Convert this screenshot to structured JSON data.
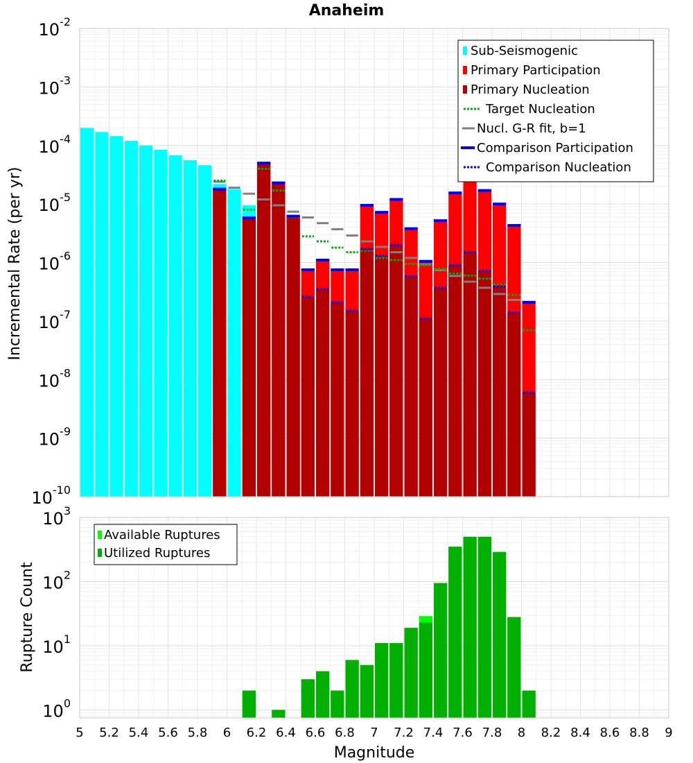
{
  "colors": {
    "sub_seismogenic": "#00ffff",
    "primary_participation": "#ff0000",
    "primary_nucleation": "#b20000",
    "target_nucleation": "#00b000",
    "gr_fit": "#808080",
    "comparison": "#0000ff",
    "available": "#00ff00",
    "utilized": "#00b000",
    "grid": "#ebebeb"
  },
  "chart_data": [
    {
      "type": "bar",
      "title": "Anaheim",
      "xlabel": "",
      "ylabel": "Incremental Rate (per yr)",
      "yscale": "log",
      "xlim": [
        5,
        9
      ],
      "ylim": [
        1e-10,
        0.01
      ],
      "ytick_exponents": [
        "-10",
        "-9",
        "-8",
        "-7",
        "-6",
        "-5",
        "-4",
        "-3",
        "-2"
      ],
      "bin_width": 0.1,
      "legend": [
        {
          "label": "Sub-Seismogenic",
          "style": "bar",
          "color": "#00ffff"
        },
        {
          "label": "Primary Participation",
          "style": "bar",
          "color": "#ff0000"
        },
        {
          "label": "Primary Nucleation",
          "style": "bar",
          "color": "#b20000"
        },
        {
          "label": "Target Nucleation",
          "style": "dotted",
          "color": "#00b000"
        },
        {
          "label": "Nucl. G-R fit, b=1",
          "style": "solid",
          "color": "#808080"
        },
        {
          "label": "Comparison Participation",
          "style": "thick",
          "color": "#0000ff"
        },
        {
          "label": "Comparison Nucleation",
          "style": "dotted",
          "color": "#0000ff"
        }
      ],
      "series": [
        {
          "name": "Sub-Seismogenic",
          "x": [
            5.05,
            5.15,
            5.25,
            5.35,
            5.45,
            5.55,
            5.65,
            5.75,
            5.85,
            5.95,
            6.05,
            6.15
          ],
          "values": [
            0.0002,
            0.00017,
            0.000145,
            0.00012,
            0.0001,
            8.5e-05,
            6.8e-05,
            5.6e-05,
            4.6e-05,
            2.2e-05,
            1.8e-05,
            9.5e-06
          ]
        },
        {
          "name": "Primary Participation",
          "x": [
            5.95,
            6.15,
            6.25,
            6.35,
            6.45,
            6.55,
            6.65,
            6.75,
            6.85,
            6.95,
            7.05,
            7.15,
            7.25,
            7.35,
            7.45,
            7.55,
            7.65,
            7.75,
            7.85,
            7.95,
            8.05
          ],
          "values": [
            1.8e-05,
            5.8e-06,
            5e-05,
            2.3e-05,
            6.2e-06,
            7.5e-07,
            1.1e-06,
            7.5e-07,
            7.5e-07,
            9.5e-06,
            7.2e-06,
            1.2e-05,
            3.8e-06,
            1.05e-06,
            5.2e-06,
            1.55e-05,
            2.8e-05,
            1.7e-05,
            1e-05,
            4.3e-06,
            2.1e-07
          ]
        },
        {
          "name": "Primary Nucleation",
          "x": [
            5.95,
            6.15,
            6.25,
            6.35,
            6.45,
            6.55,
            6.65,
            6.75,
            6.85,
            6.95,
            7.05,
            7.15,
            7.25,
            7.35,
            7.45,
            7.55,
            7.65,
            7.75,
            7.85,
            7.95,
            8.05
          ],
          "values": [
            1.8e-05,
            5.8e-06,
            5e-05,
            2.3e-05,
            6.2e-06,
            2.6e-07,
            3.5e-07,
            2.1e-07,
            1.5e-07,
            1.7e-06,
            1.3e-06,
            2e-06,
            5.8e-07,
            1.1e-07,
            3.7e-07,
            9e-07,
            1.5e-06,
            7.2e-07,
            3.9e-07,
            1.4e-07,
            6e-09
          ]
        },
        {
          "name": "Target Nucleation",
          "x": [
            5.95,
            6.15,
            6.25,
            6.35,
            6.45,
            6.55,
            6.65,
            6.75,
            6.85,
            6.95,
            7.05,
            7.15,
            7.25,
            7.35,
            7.45,
            7.55,
            7.65,
            7.75,
            7.85,
            7.95,
            8.05
          ],
          "values": [
            2.5e-05,
            8e-06,
            4e-05,
            1.7e-05,
            6e-06,
            2.8e-06,
            2.3e-06,
            1.8e-06,
            1.5e-06,
            1.6e-06,
            1.2e-06,
            1.1e-06,
            9.5e-07,
            9e-07,
            7.8e-07,
            6.5e-07,
            6e-07,
            5.3e-07,
            4.2e-07,
            2.8e-07,
            7e-08
          ]
        },
        {
          "name": "Nucl. G-R fit, b=1",
          "x": [
            5.95,
            6.05,
            6.15,
            6.25,
            6.35,
            6.45,
            6.55,
            6.65,
            6.75,
            6.85,
            6.95,
            7.05,
            7.15,
            7.25,
            7.35,
            7.45,
            7.55,
            7.65,
            7.75,
            7.85,
            7.95
          ],
          "values": [
            2.4e-05,
            1.9e-05,
            1.5e-05,
            1.2e-05,
            9.5e-06,
            7.4e-06,
            5.9e-06,
            4.7e-06,
            3.7e-06,
            2.9e-06,
            2.3e-06,
            1.85e-06,
            1.5e-06,
            1.2e-06,
            9.3e-07,
            7.4e-07,
            5.9e-07,
            4.7e-07,
            3.7e-07,
            2.9e-07,
            2.3e-07
          ]
        },
        {
          "name": "Comparison Participation",
          "x": [
            5.95,
            6.15,
            6.25,
            6.35,
            6.45,
            6.55,
            6.65,
            6.75,
            6.85,
            6.95,
            7.05,
            7.15,
            7.25,
            7.35,
            7.45,
            7.55,
            7.65,
            7.75,
            7.85,
            7.95,
            8.05
          ],
          "values": [
            1.8e-05,
            5.8e-06,
            5e-05,
            2.3e-05,
            6.2e-06,
            7.5e-07,
            1.1e-06,
            7.5e-07,
            7.5e-07,
            9.5e-06,
            7.2e-06,
            1.2e-05,
            3.8e-06,
            1.05e-06,
            5.2e-06,
            1.55e-05,
            2.8e-05,
            1.7e-05,
            1e-05,
            4.3e-06,
            2.1e-07
          ]
        },
        {
          "name": "Comparison Nucleation",
          "x": [
            5.95,
            6.15,
            6.25,
            6.35,
            6.45,
            6.55,
            6.65,
            6.75,
            6.85,
            6.95,
            7.05,
            7.15,
            7.25,
            7.35,
            7.45,
            7.55,
            7.65,
            7.75,
            7.85,
            7.95,
            8.05
          ],
          "values": [
            1.8e-05,
            5.8e-06,
            5e-05,
            2.3e-05,
            6.2e-06,
            2.6e-07,
            3.5e-07,
            2.1e-07,
            1.5e-07,
            1.7e-06,
            1.3e-06,
            2e-06,
            5.8e-07,
            1.1e-07,
            3.7e-07,
            9e-07,
            1.5e-06,
            7.2e-07,
            3.9e-07,
            1.4e-07,
            6e-09
          ]
        }
      ]
    },
    {
      "type": "bar",
      "title": "",
      "xlabel": "Magnitude",
      "ylabel": "Rupture Count",
      "yscale": "log",
      "xlim": [
        5,
        9
      ],
      "ylim": [
        0.75,
        1000
      ],
      "ytick_exponents": [
        "0",
        "1",
        "2",
        "3"
      ],
      "xticks": [
        "5",
        "5.2",
        "5.4",
        "5.6",
        "5.8",
        "6",
        "6.2",
        "6.4",
        "6.6",
        "6.8",
        "7",
        "7.2",
        "7.4",
        "7.6",
        "7.8",
        "8",
        "8.2",
        "8.4",
        "8.6",
        "8.8",
        "9"
      ],
      "bin_width": 0.1,
      "legend": [
        {
          "label": "Available Ruptures",
          "color": "#00ff00"
        },
        {
          "label": "Utilized Ruptures",
          "color": "#00b000"
        }
      ],
      "series": [
        {
          "name": "Available Ruptures",
          "x": [
            6.15,
            6.35,
            6.55,
            6.65,
            6.75,
            6.85,
            6.95,
            7.05,
            7.15,
            7.25,
            7.35,
            7.45,
            7.55,
            7.65,
            7.75,
            7.85,
            7.95,
            8.05
          ],
          "values": [
            2,
            1,
            3,
            4,
            2,
            6,
            5,
            11,
            11,
            19,
            29,
            95,
            350,
            500,
            500,
            290,
            28,
            2
          ]
        },
        {
          "name": "Utilized Ruptures",
          "x": [
            6.15,
            6.35,
            6.55,
            6.65,
            6.75,
            6.85,
            6.95,
            7.05,
            7.15,
            7.25,
            7.35,
            7.45,
            7.55,
            7.65,
            7.75,
            7.85,
            7.95,
            8.05
          ],
          "values": [
            2,
            1,
            3,
            4,
            2,
            6,
            5,
            11,
            11,
            19,
            23,
            95,
            350,
            500,
            500,
            290,
            28,
            2
          ]
        }
      ]
    }
  ]
}
